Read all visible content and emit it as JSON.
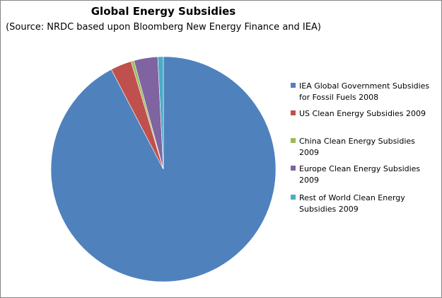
{
  "chart_data": {
    "type": "pie",
    "title": "Global Energy Subsidies",
    "subtitle": "(Source: NRDC based upon  Bloomberg New Energy Finance and IEA)",
    "legend_position": "right",
    "categories": [
      "IEA Global Government Subsidies for Fossil Fuels 2008",
      "US Clean Energy Subsidies 2009",
      "China Clean Energy Subsidies 2009",
      "Europe Clean Energy Subsidies 2009",
      "Rest of World Clean Energy Subsidies 2009"
    ],
    "values": [
      557,
      18.2,
      2.5,
      20.7,
      4.8
    ],
    "colors": [
      "#4F81BD",
      "#C0504D",
      "#9BBB59",
      "#8064A2",
      "#4BACC6"
    ]
  }
}
